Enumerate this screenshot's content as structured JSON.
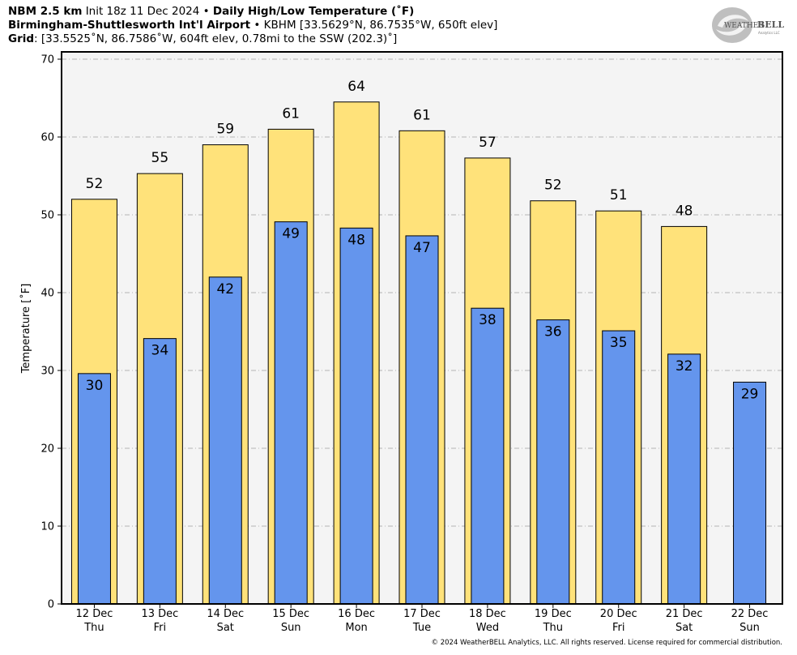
{
  "header": {
    "model": "NBM 2.5 km",
    "init": "Init 18z 11 Dec 2024",
    "sep1": "•",
    "product": "Daily High/Low Temperature (˚F)",
    "station_name": "Birmingham-Shuttlesworth Int'l Airport",
    "sep2": "•",
    "station_info": "KBHM [33.5629°N, 86.7535°W, 650ft elev]",
    "grid_label": "Grid",
    "grid_info": ": [33.5525˚N, 86.7586˚W, 604ft elev, 0.78mi to the SSW (202.3)˚]"
  },
  "logo": {
    "text_weather": "WEATHER",
    "text_bell": "BELL",
    "text_sub": "Analytics LLC"
  },
  "footer": "© 2024 WeatherBELL Analytics, LLC. All rights reserved. License required for commercial distribution.",
  "chart_data": {
    "type": "bar",
    "ylabel": "Temperature [˚F]",
    "ylim": [
      0,
      70
    ],
    "yticks": [
      0,
      10,
      20,
      30,
      40,
      50,
      60,
      70
    ],
    "grid": true,
    "categories": [
      [
        "12 Dec",
        "Thu"
      ],
      [
        "13 Dec",
        "Fri"
      ],
      [
        "14 Dec",
        "Sat"
      ],
      [
        "15 Dec",
        "Sun"
      ],
      [
        "16 Dec",
        "Mon"
      ],
      [
        "17 Dec",
        "Tue"
      ],
      [
        "18 Dec",
        "Wed"
      ],
      [
        "19 Dec",
        "Thu"
      ],
      [
        "20 Dec",
        "Fri"
      ],
      [
        "21 Dec",
        "Sat"
      ],
      [
        "22 Dec",
        "Sun"
      ]
    ],
    "series": [
      {
        "role": "high",
        "color": "#ffe27a",
        "values": [
          52.0,
          55.3,
          59.0,
          61.0,
          64.5,
          60.8,
          57.3,
          51.8,
          50.5,
          48.5,
          null
        ],
        "labels": [
          "52",
          "55",
          "59",
          "61",
          "64",
          "61",
          "57",
          "52",
          "51",
          "48",
          null
        ]
      },
      {
        "role": "low",
        "color": "#6495ed",
        "values": [
          29.6,
          34.1,
          42.0,
          49.1,
          48.3,
          47.3,
          38.0,
          36.5,
          35.1,
          32.1,
          28.5
        ],
        "labels": [
          "30",
          "34",
          "42",
          "49",
          "48",
          "47",
          "38",
          "36",
          "35",
          "32",
          "29"
        ]
      }
    ]
  }
}
